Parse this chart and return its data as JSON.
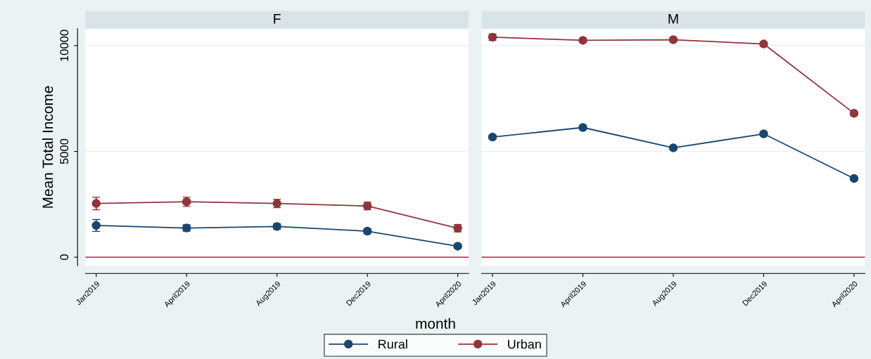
{
  "chart_data": [
    {
      "type": "line",
      "title": "F",
      "ylabel": "Mean Total Income",
      "xlabel": "month",
      "categories": [
        "Jan2019",
        "April2019",
        "Aug2019",
        "Dec2019",
        "April2020"
      ],
      "series": [
        {
          "name": "Rural",
          "color": "#1a476f",
          "values": [
            1500,
            1380,
            1450,
            1230,
            520
          ],
          "errors": [
            280,
            150,
            130,
            120,
            90
          ]
        },
        {
          "name": "Urban",
          "color": "#90353b",
          "values": [
            2540,
            2620,
            2540,
            2420,
            1370
          ],
          "errors": [
            300,
            220,
            200,
            180,
            170
          ]
        }
      ],
      "ylim": [
        -400,
        10800
      ],
      "yticks": [
        0,
        5000,
        10000
      ],
      "grid": "y",
      "legend": "bottom",
      "marker": "circle",
      "line_style": "solid",
      "ref_lines": [
        {
          "axis": "y",
          "value": 0,
          "color": "#d9365e"
        }
      ]
    },
    {
      "type": "line",
      "title": "M",
      "categories": [
        "Jan2019",
        "April2019",
        "Aug2019",
        "Dec2019",
        "April2020"
      ],
      "series": [
        {
          "color": "#1a476f",
          "values": [
            5680,
            6130,
            5170,
            5830,
            3720
          ],
          "errors": [
            90,
            70,
            60,
            70,
            60
          ]
        },
        {
          "color": "#90353b",
          "values": [
            10400,
            10250,
            10280,
            10080,
            6800
          ],
          "errors": [
            150,
            90,
            90,
            80,
            70
          ]
        }
      ],
      "ylim": [
        -400,
        10800
      ],
      "yticks": [
        0,
        5000,
        10000
      ],
      "grid": "y",
      "marker": "circle",
      "line_style": "solid",
      "tick_labels": "x",
      "ref_lines": [
        {
          "axis": "y",
          "value": 0,
          "color": "#d9365e"
        }
      ]
    }
  ]
}
